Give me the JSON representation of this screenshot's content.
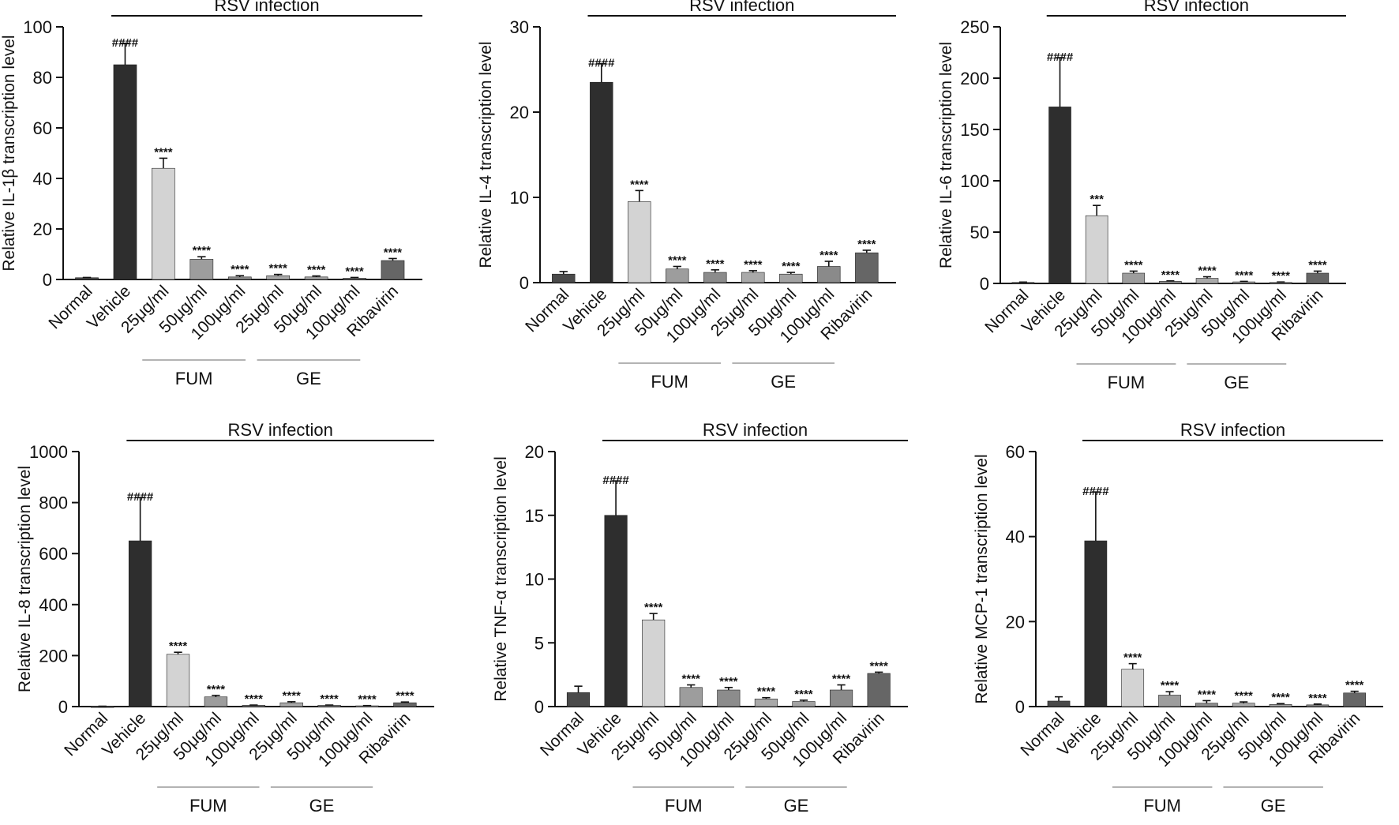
{
  "chart_data": [
    {
      "type": "bar",
      "ylabel": "Relative IL-1β transcription level",
      "ylim": [
        0,
        100
      ],
      "yticks": [
        0,
        20,
        40,
        60,
        80,
        100
      ],
      "bracket_label": "RSV infection",
      "group_labels": [
        "FUM",
        "GE"
      ],
      "categories": [
        "Normal",
        "Vehicle",
        "25μg/ml",
        "50μg/ml",
        "100μg/ml",
        "25μg/ml",
        "50μg/ml",
        "100μg/ml",
        "Ribavirin"
      ],
      "values": [
        0.7,
        85,
        44,
        8,
        1,
        1.5,
        1,
        0.5,
        7.5
      ],
      "errors": [
        0.1,
        8.5,
        4,
        1,
        0.5,
        0.5,
        0.4,
        0.3,
        0.8
      ],
      "annotations": [
        "",
        "####",
        "****",
        "****",
        "****",
        "****",
        "****",
        "****",
        "****"
      ]
    },
    {
      "type": "bar",
      "ylabel": "Relative IL-4 transcription level",
      "ylim": [
        0,
        30
      ],
      "yticks": [
        0,
        10,
        20,
        30
      ],
      "bracket_label": "RSV infection",
      "group_labels": [
        "FUM",
        "GE"
      ],
      "categories": [
        "Normal",
        "Vehicle",
        "25μg/ml",
        "50μg/ml",
        "100μg/ml",
        "25μg/ml",
        "50μg/ml",
        "100μg/ml",
        "Ribavirin"
      ],
      "values": [
        1,
        23.5,
        9.5,
        1.6,
        1.2,
        1.2,
        1,
        1.9,
        3.5
      ],
      "errors": [
        0.3,
        2.2,
        1.3,
        0.3,
        0.3,
        0.2,
        0.2,
        0.6,
        0.3
      ],
      "annotations": [
        "",
        "####",
        "****",
        "****",
        "****",
        "****",
        "****",
        "****",
        "****"
      ]
    },
    {
      "type": "bar",
      "ylabel": "Relative IL-6 transcription level",
      "ylim": [
        0,
        250
      ],
      "yticks": [
        0,
        50,
        100,
        150,
        200,
        250
      ],
      "bracket_label": "RSV infection",
      "group_labels": [
        "FUM",
        "GE"
      ],
      "categories": [
        "Normal",
        "Vehicle",
        "25μg/ml",
        "50μg/ml",
        "100μg/ml",
        "25μg/ml",
        "50μg/ml",
        "100μg/ml",
        "Ribavirin"
      ],
      "values": [
        1,
        172,
        66,
        10,
        2,
        5,
        1.5,
        1,
        10
      ],
      "errors": [
        0.3,
        48,
        10,
        2,
        0.5,
        1.5,
        0.5,
        0.4,
        2
      ],
      "annotations": [
        "",
        "####",
        "***",
        "****",
        "****",
        "****",
        "****",
        "****",
        "****"
      ]
    },
    {
      "type": "bar",
      "ylabel": "Relative IL-8 transcription level",
      "ylim": [
        0,
        1000
      ],
      "yticks": [
        0,
        200,
        400,
        600,
        800,
        1000
      ],
      "bracket_label": "RSV infection",
      "group_labels": [
        "FUM",
        "GE"
      ],
      "categories": [
        "Normal",
        "Vehicle",
        "25μg/ml",
        "50μg/ml",
        "100μg/ml",
        "25μg/ml",
        "50μg/ml",
        "100μg/ml",
        "Ribavirin"
      ],
      "values": [
        1,
        650,
        205,
        38,
        5,
        15,
        5,
        3,
        15
      ],
      "errors": [
        0.5,
        170,
        8,
        6,
        1,
        4,
        1,
        1,
        3
      ],
      "annotations": [
        "",
        "####",
        "****",
        "****",
        "****",
        "****",
        "****",
        "****",
        "****"
      ]
    },
    {
      "type": "bar",
      "ylabel": "Relative TNF-α transcription level",
      "ylim": [
        0,
        20
      ],
      "yticks": [
        0,
        5,
        10,
        15,
        20
      ],
      "bracket_label": "RSV infection",
      "group_labels": [
        "FUM",
        "GE"
      ],
      "categories": [
        "Normal",
        "Vehicle",
        "25μg/ml",
        "50μg/ml",
        "100μg/ml",
        "25μg/ml",
        "50μg/ml",
        "100μg/ml",
        "Ribavirin"
      ],
      "values": [
        1.1,
        15,
        6.8,
        1.5,
        1.3,
        0.6,
        0.4,
        1.3,
        2.6
      ],
      "errors": [
        0.5,
        2.7,
        0.5,
        0.2,
        0.2,
        0.1,
        0.1,
        0.4,
        0.1
      ],
      "annotations": [
        "",
        "####",
        "****",
        "****",
        "****",
        "****",
        "****",
        "****",
        "****"
      ]
    },
    {
      "type": "bar",
      "ylabel": "Relative MCP-1 transcription level",
      "ylim": [
        0,
        60
      ],
      "yticks": [
        0,
        20,
        40,
        60
      ],
      "bracket_label": "RSV infection",
      "group_labels": [
        "FUM",
        "GE"
      ],
      "categories": [
        "Normal",
        "Vehicle",
        "25μg/ml",
        "50μg/ml",
        "100μg/ml",
        "25μg/ml",
        "50μg/ml",
        "100μg/ml",
        "Ribavirin"
      ],
      "values": [
        1.3,
        39,
        8.8,
        2.7,
        0.8,
        0.8,
        0.5,
        0.4,
        3.2
      ],
      "errors": [
        1,
        11.5,
        1.3,
        0.8,
        0.6,
        0.3,
        0.2,
        0.2,
        0.4
      ],
      "annotations": [
        "",
        "####",
        "****",
        "****",
        "****",
        "****",
        "****",
        "****",
        "****"
      ]
    }
  ],
  "colors": {
    "bars": [
      "#4a4a4a",
      "#2e2e2e",
      "#d3d3d3",
      "#9d9d9d",
      "#8c8c8c",
      "#a9a9a9",
      "#a3a3a3",
      "#8a8a8a",
      "#666666"
    ],
    "axis": "#111111",
    "group_line": "#9a9a9a"
  }
}
